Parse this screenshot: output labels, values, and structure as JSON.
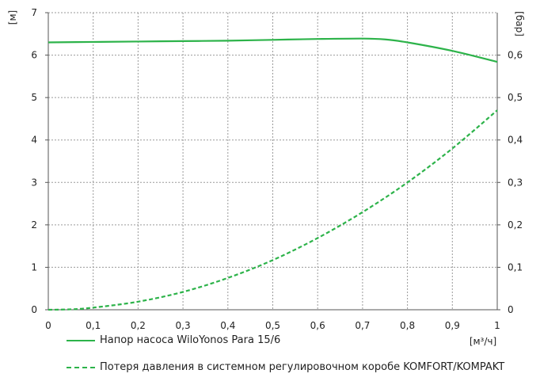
{
  "chart_data": {
    "type": "line",
    "xlabel": "[м³/ч]",
    "ylabel_left": "[м]",
    "ylabel_right": "[бар]",
    "xlim": [
      0,
      1
    ],
    "ylim_left": [
      0,
      7
    ],
    "ylim_right": [
      0,
      0.7
    ],
    "x_ticks": [
      "0",
      "0,1",
      "0,2",
      "0,3",
      "0,4",
      "0,5",
      "0,6",
      "0,7",
      "0,8",
      "0,9",
      "1"
    ],
    "y_left_ticks": [
      "0",
      "1",
      "2",
      "3",
      "4",
      "5",
      "6",
      "7"
    ],
    "y_right_ticks": [
      "0",
      "0,1",
      "0,2",
      "0,3",
      "0,4",
      "0,5",
      "0,6"
    ],
    "grid": true,
    "legend_position": "bottom",
    "series": [
      {
        "name": "Напор насоса WiloYonos Para 15/6",
        "style": "solid",
        "color": "#2db34a",
        "x": [
          0,
          0.1,
          0.2,
          0.3,
          0.4,
          0.5,
          0.6,
          0.7,
          0.75,
          0.8,
          0.9,
          1.0
        ],
        "y": [
          6.3,
          6.31,
          6.32,
          6.33,
          6.34,
          6.36,
          6.38,
          6.39,
          6.37,
          6.3,
          6.1,
          5.84
        ]
      },
      {
        "name": "Потеря давления в системном регулировочном коробе KOMFORT/KOMPAKT",
        "style": "dashed",
        "color": "#2db34a",
        "x": [
          0,
          0.05,
          0.1,
          0.2,
          0.3,
          0.4,
          0.5,
          0.6,
          0.7,
          0.8,
          0.9,
          1.0
        ],
        "y": [
          0,
          0.01,
          0.05,
          0.19,
          0.42,
          0.75,
          1.17,
          1.69,
          2.3,
          3.0,
          3.8,
          4.7
        ]
      }
    ]
  }
}
